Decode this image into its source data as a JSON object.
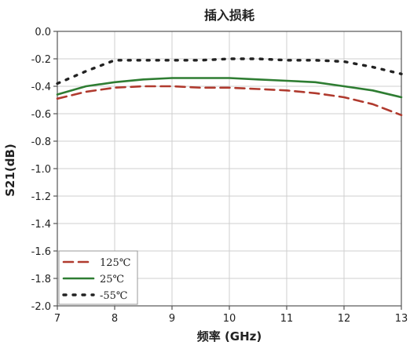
{
  "chart_data": {
    "type": "line",
    "title": "插入损耗",
    "xlabel": "频率 (GHz)",
    "ylabel": "S21(dB)",
    "xlim": [
      7,
      13
    ],
    "ylim": [
      -2.0,
      0.0
    ],
    "xticks": [
      7,
      8,
      9,
      10,
      11,
      12,
      13
    ],
    "xtick_labels": [
      "7",
      "8",
      "9",
      "10",
      "11",
      "12",
      "13"
    ],
    "yticks": [
      0.0,
      -0.2,
      -0.4,
      -0.6,
      -0.8,
      -1.0,
      -1.2,
      -1.4,
      -1.6,
      -1.8,
      -2.0
    ],
    "ytick_labels": [
      "0.0",
      "-0.2",
      "-0.4",
      "-0.6",
      "-0.8",
      "-1.0",
      "-1.2",
      "-1.4",
      "-1.6",
      "-1.8",
      "-2.0"
    ],
    "grid": true,
    "legend_position": "bottom-left",
    "series": [
      {
        "name": "125℃",
        "color": "#b03a2e",
        "style": "dashed",
        "x": [
          7.0,
          7.5,
          8.0,
          8.5,
          9.0,
          9.5,
          10.0,
          10.5,
          11.0,
          11.5,
          12.0,
          12.5,
          13.0
        ],
        "y": [
          -0.49,
          -0.44,
          -0.41,
          -0.4,
          -0.4,
          -0.41,
          -0.41,
          -0.42,
          -0.43,
          -0.45,
          -0.48,
          -0.53,
          -0.61
        ]
      },
      {
        "name": "25℃",
        "color": "#2e7d32",
        "style": "solid",
        "x": [
          7.0,
          7.5,
          8.0,
          8.5,
          9.0,
          9.5,
          10.0,
          10.5,
          11.0,
          11.5,
          12.0,
          12.5,
          13.0
        ],
        "y": [
          -0.46,
          -0.4,
          -0.37,
          -0.35,
          -0.34,
          -0.34,
          -0.34,
          -0.35,
          -0.36,
          -0.37,
          -0.4,
          -0.43,
          -0.48
        ]
      },
      {
        "name": "-55℃",
        "color": "#222222",
        "style": "dotted",
        "x": [
          7.0,
          7.5,
          8.0,
          8.5,
          9.0,
          9.5,
          10.0,
          10.5,
          11.0,
          11.5,
          12.0,
          12.5,
          13.0
        ],
        "y": [
          -0.38,
          -0.29,
          -0.21,
          -0.21,
          -0.21,
          -0.21,
          -0.2,
          -0.2,
          -0.21,
          -0.21,
          -0.22,
          -0.26,
          -0.31
        ]
      }
    ]
  }
}
